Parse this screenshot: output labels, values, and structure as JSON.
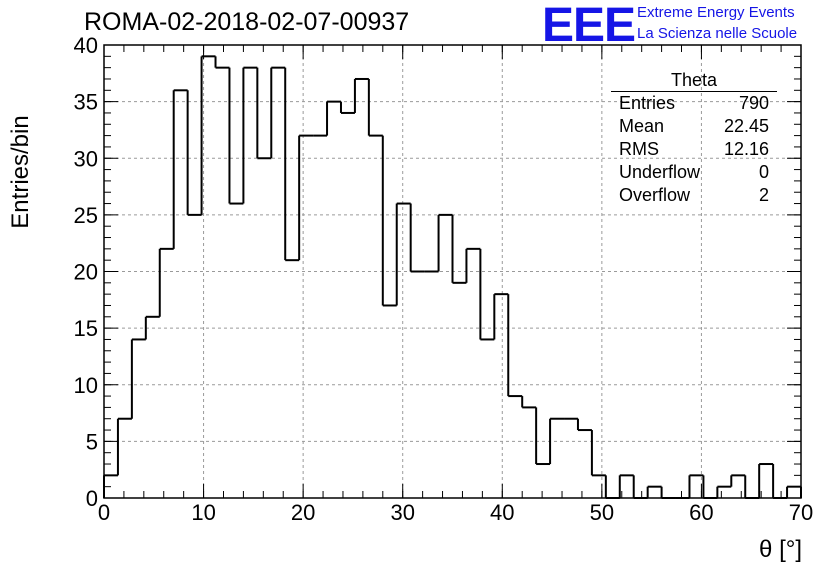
{
  "header": {
    "title": "ROMA-02-2018-02-07-00937",
    "logo_text": "EEE",
    "logo_line1": "Extreme Energy Events",
    "logo_line2": "La Scienza nelle Scuole"
  },
  "stats_box": {
    "title": "Theta",
    "rows": [
      {
        "label": "Entries",
        "value": "790"
      },
      {
        "label": "Mean",
        "value": "22.45"
      },
      {
        "label": "RMS",
        "value": "12.16"
      },
      {
        "label": "Underflow",
        "value": "0"
      },
      {
        "label": "Overflow",
        "value": "2"
      }
    ]
  },
  "colors": {
    "logo": "#1515e6",
    "line": "#000000",
    "grid": "#9a9a9a"
  },
  "chart_data": {
    "type": "bar",
    "histogram": true,
    "ylabel": "Entries/bin",
    "xlabel": "θ [°]",
    "xlim": [
      0,
      70
    ],
    "ylim": [
      0,
      40
    ],
    "bin_width": 1.4,
    "grid": true,
    "x_ticks": [
      "0",
      "10",
      "20",
      "30",
      "40",
      "50",
      "60",
      "70"
    ],
    "y_ticks": [
      "0",
      "5",
      "10",
      "15",
      "20",
      "25",
      "30",
      "35",
      "40"
    ],
    "values": [
      2,
      7,
      14,
      16,
      22,
      36,
      25,
      39,
      38,
      26,
      38,
      30,
      38,
      21,
      32,
      32,
      35,
      34,
      37,
      32,
      17,
      26,
      20,
      20,
      25,
      19,
      22,
      14,
      18,
      9,
      8,
      3,
      7,
      7,
      6,
      2,
      0,
      2,
      0,
      1,
      0,
      0,
      2,
      0,
      1,
      2,
      0,
      3,
      0,
      1
    ]
  }
}
